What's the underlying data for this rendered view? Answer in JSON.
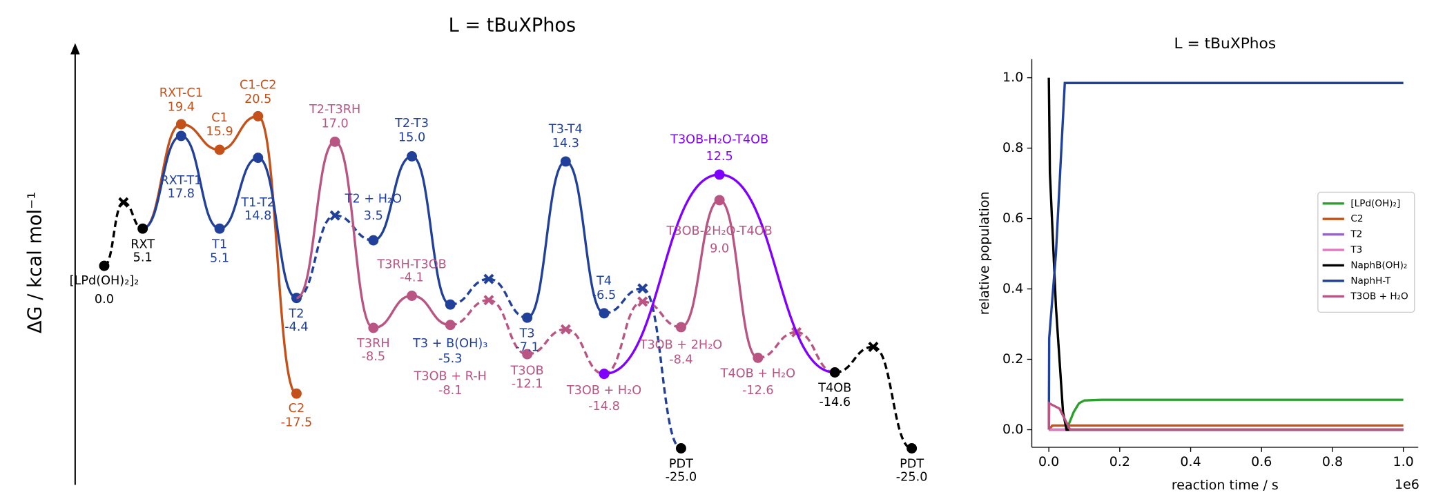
{
  "chart_data": [
    {
      "type": "profile",
      "title": "L = tBuXPhos",
      "ylabel": "ΔG / kcal mol⁻¹",
      "ylim": [
        -30,
        30
      ],
      "series": [
        {
          "color": "#000000",
          "labels": [
            "[LPd(OH)₂]₂",
            null,
            "RXT"
          ],
          "values": [
            0.0,
            8.7,
            5.1
          ],
          "value_labels": [
            "0.0",
            null,
            "5.1"
          ],
          "markers": [
            "dot",
            "cross",
            "dot"
          ]
        },
        {
          "color": "#c4501a",
          "labels": [
            null,
            "RXT-C1",
            "C1",
            "C1-C2",
            "C2"
          ],
          "values": [
            5.1,
            19.4,
            15.9,
            20.5,
            -17.5
          ],
          "value_labels": [
            null,
            "19.4",
            "15.9",
            "20.5",
            "-17.5"
          ],
          "markers": [
            null,
            "dot",
            "dot",
            "dot",
            "dot"
          ]
        },
        {
          "color": "#21409a",
          "labels": [
            null,
            "RXT-T1",
            "T1",
            "T1-T2",
            "T2",
            null,
            "T2 + H₂O",
            "T2-T3",
            "T3 + B(OH)₃",
            null,
            "T3",
            "T3-T4",
            "T4",
            null,
            "PDT"
          ],
          "values": [
            5.1,
            17.8,
            5.1,
            14.8,
            -4.4,
            6.9,
            3.5,
            15.0,
            -5.3,
            -1.8,
            -7.1,
            14.3,
            -6.5,
            -3.1,
            -25.0
          ],
          "value_labels": [
            null,
            "17.8",
            "5.1",
            "14.8",
            "-4.4",
            null,
            "3.5",
            "15.0",
            "-5.3",
            null,
            "-7.1",
            "14.3",
            "-6.5",
            null,
            "-25.0"
          ],
          "markers": [
            null,
            "dot",
            "dot",
            "dot",
            "dot",
            "cross",
            "dot",
            "dot",
            "dot",
            "cross",
            "dot",
            "dot",
            "dot",
            "cross",
            "dot"
          ],
          "point_colors": [
            null,
            null,
            null,
            null,
            null,
            null,
            null,
            null,
            null,
            null,
            null,
            null,
            null,
            null,
            "#000000"
          ]
        },
        {
          "color": "#b85583",
          "labels": [
            null,
            "T2-T3RH",
            "T3RH",
            "T3RH-T3OB",
            "T3OB + R-H",
            null,
            "T3OB",
            null,
            "T3OB + H₂O",
            null,
            "T3OB + 2H₂O",
            "T3OB-2H₂O-T4OB",
            "T4OB + H₂O",
            null,
            null
          ],
          "values": [
            -4.4,
            17.0,
            -8.5,
            -4.1,
            -8.1,
            -4.7,
            -12.1,
            -8.7,
            -14.8,
            -4.9,
            -8.4,
            9.0,
            -12.6,
            -9.1,
            -14.6
          ],
          "value_labels": [
            null,
            "17.0",
            "-8.5",
            "-4.1",
            "-8.1",
            null,
            "-12.1",
            null,
            "-14.8",
            null,
            "-8.4",
            "9.0",
            "-12.6",
            null,
            null
          ],
          "markers": [
            null,
            "dot",
            "dot",
            "dot",
            "dot",
            "cross",
            "dot",
            "cross",
            "dot",
            "cross",
            "dot",
            "dot",
            "dot",
            "cross",
            null
          ]
        },
        {
          "color": "#8000ff",
          "labels": [
            null,
            "T3OB-H₂O-T4OB",
            null
          ],
          "values": [
            -14.8,
            12.5,
            -14.6
          ],
          "value_labels": [
            null,
            "12.5",
            null
          ],
          "markers": [
            "dot",
            "dot",
            null
          ]
        },
        {
          "color": "#000000",
          "labels": [
            "T4OB",
            null,
            "PDT"
          ],
          "values": [
            -14.6,
            -11.1,
            -25.0
          ],
          "value_labels": [
            "-14.6",
            null,
            "-25.0"
          ],
          "markers": [
            "dot",
            "cross",
            "dot"
          ]
        }
      ]
    },
    {
      "type": "line",
      "title": "L = tBuXPhos",
      "xlabel": "reaction time / s",
      "ylabel": "relative population",
      "x_offset_label": "1e6",
      "xlim": [
        -48000,
        1042000
      ],
      "ylim": [
        -0.05,
        1.053
      ],
      "xticks": [
        {
          "value": 0,
          "label": "0.0"
        },
        {
          "value": 200000,
          "label": "0.2"
        },
        {
          "value": 400000,
          "label": "0.4"
        },
        {
          "value": 600000,
          "label": "0.6"
        },
        {
          "value": 800000,
          "label": "0.8"
        },
        {
          "value": 1000000,
          "label": "1.0"
        }
      ],
      "yticks": [
        {
          "value": 0,
          "label": "0.0"
        },
        0.2,
        0.4,
        0.6,
        0.8,
        {
          "value": 1,
          "label": "1.0"
        }
      ],
      "legend": "center right",
      "series": [
        {
          "name": "[LPd(OH)₂]",
          "color": "#2ca02c",
          "x": [
            0,
            50000,
            70000,
            85000,
            100000,
            150000,
            1000000
          ],
          "values": [
            0,
            0.0,
            0.05,
            0.075,
            0.083,
            0.085,
            0.085
          ]
        },
        {
          "name": "C2",
          "color": "#c4501a",
          "x": [
            0,
            10000,
            1000000
          ],
          "values": [
            0,
            0.012,
            0.012
          ]
        },
        {
          "name": "T2",
          "color": "#9467bd",
          "x": [
            0,
            1000000
          ],
          "values": [
            0,
            0
          ]
        },
        {
          "name": "T3",
          "color": "#e377c2",
          "x": [
            0,
            1000000
          ],
          "values": [
            0,
            0
          ]
        },
        {
          "name": "NaphB(OH)₂",
          "color": "#000000",
          "x": [
            0,
            3000,
            20000,
            40000,
            50000,
            1000000
          ],
          "values": [
            1.0,
            0.73,
            0.35,
            0.05,
            0,
            0
          ]
        },
        {
          "name": "NaphH-T",
          "color": "#21409a",
          "x": [
            0,
            1000,
            20000,
            45000,
            1000000
          ],
          "values": [
            0,
            0.26,
            0.5,
            0.985,
            0.985
          ]
        },
        {
          "name": "T3OB + H₂O",
          "color": "#b85583",
          "x": [
            0,
            1000,
            30000,
            60000,
            1000000
          ],
          "values": [
            0,
            0.075,
            0.06,
            0,
            0
          ]
        }
      ]
    }
  ]
}
